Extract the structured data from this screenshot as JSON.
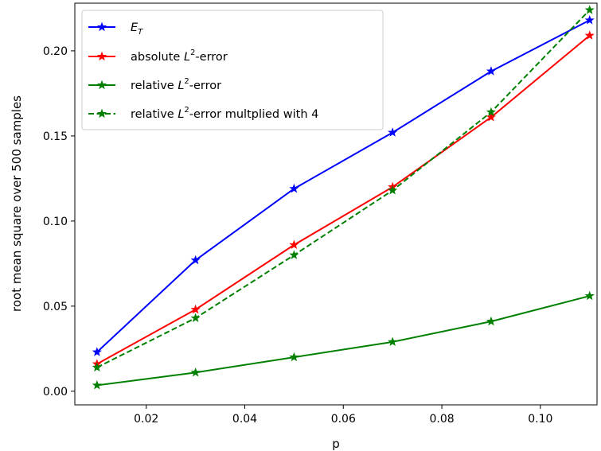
{
  "chart_data": {
    "type": "line",
    "title": "",
    "xlabel": "p",
    "ylabel": "root mean square over 500 samples",
    "x": [
      0.01,
      0.03,
      0.05,
      0.07,
      0.09,
      0.11
    ],
    "xlim": [
      0.0055,
      0.1115
    ],
    "ylim": [
      -0.008,
      0.228
    ],
    "xticks": [
      0.02,
      0.04,
      0.06,
      0.08,
      0.1
    ],
    "xtick_labels": [
      "0.02",
      "0.04",
      "0.06",
      "0.08",
      "0.10"
    ],
    "yticks": [
      0.0,
      0.05,
      0.1,
      0.15,
      0.2
    ],
    "ytick_labels": [
      "0.00",
      "0.05",
      "0.10",
      "0.15",
      "0.20"
    ],
    "grid": false,
    "legend_position": "top-left",
    "series": [
      {
        "name": "E_T",
        "name_main": "E",
        "name_sub": "T",
        "values": [
          0.023,
          0.077,
          0.119,
          0.152,
          0.188,
          0.218
        ],
        "color": "#0000ff",
        "dash": "solid",
        "marker": "star"
      },
      {
        "name": "absolute L²-error",
        "name_pre": "absolute ",
        "name_sup": "2",
        "name_post": "-error",
        "values": [
          0.016,
          0.048,
          0.086,
          0.12,
          0.161,
          0.209
        ],
        "color": "#ff0000",
        "dash": "solid",
        "marker": "star"
      },
      {
        "name": "relative L²-error",
        "name_pre": "relative ",
        "name_sup": "2",
        "name_post": "-error",
        "values": [
          0.0035,
          0.011,
          0.02,
          0.029,
          0.041,
          0.056
        ],
        "color": "#008000",
        "dash": "solid",
        "marker": "star"
      },
      {
        "name": "relative L²-error multplied with 4",
        "name_pre": "relative ",
        "name_sup": "2",
        "name_post": "-error multplied with 4",
        "values": [
          0.014,
          0.043,
          0.08,
          0.118,
          0.164,
          0.224
        ],
        "color": "#008000",
        "dash": "dashed",
        "marker": "star"
      }
    ]
  }
}
